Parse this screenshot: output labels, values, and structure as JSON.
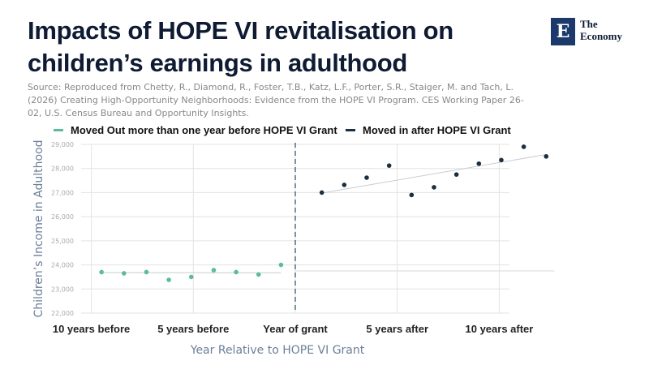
{
  "header": {
    "title_line1": "Impacts of HOPE VI revitalisation on",
    "title_line2": "children’s earnings in adulthood",
    "source": "Source: Reproduced from Chetty, R., Diamond, R., Foster, T.B., Katz, L.F., Porter, S.R., Staiger, M. and Tach, L. (2026) Creating High-Opportunity Neighborhoods: Evidence from the HOPE VI Program. CES Working Paper 26-02, U.S. Census Bureau and Opportunity Insights."
  },
  "logo": {
    "mark": "E",
    "line1": "The",
    "line2": "Economy"
  },
  "colors": {
    "moved_out": "#5dbb9a",
    "moved_in": "#1c2f3e",
    "trend": "#c8cdd2",
    "grid": "#e3e3e3",
    "divider": "#1f4e5e"
  },
  "chart_data": {
    "type": "scatter",
    "xlabel": "Year Relative to HOPE VI Grant",
    "ylabel": "Children’s Income in Adulthood",
    "xlim": [
      -10.5,
      10.5
    ],
    "ylim": [
      22000,
      29000
    ],
    "yticks": [
      22000,
      23000,
      24000,
      25000,
      26000,
      27000,
      28000,
      29000
    ],
    "ytick_labels": [
      "22,000",
      "23,000",
      "24,000",
      "25,000",
      "26,000",
      "27,000",
      "28,000",
      "29,000"
    ],
    "xticks": [
      -10,
      -5,
      0,
      5,
      10
    ],
    "xtick_labels": [
      "10 years before",
      "5 years before",
      "Year of grant",
      "5 years after",
      "10 years after"
    ],
    "grid": true,
    "legend_position": "top",
    "series": [
      {
        "name": "Moved Out more than one year before HOPE VI Grant",
        "points": [
          [
            -9.5,
            23700
          ],
          [
            -8.4,
            23650
          ],
          [
            -7.3,
            23700
          ],
          [
            -6.2,
            23380
          ],
          [
            -5.1,
            23500
          ],
          [
            -4.0,
            23780
          ],
          [
            -2.9,
            23700
          ],
          [
            -1.8,
            23600
          ],
          [
            -0.7,
            24000
          ]
        ],
        "trend": [
          [
            -9.5,
            23680
          ],
          [
            -0.7,
            23670
          ]
        ]
      },
      {
        "name": "Moved in after HOPE VI Grant",
        "points": [
          [
            1.3,
            27000
          ],
          [
            2.4,
            27320
          ],
          [
            3.5,
            27620
          ],
          [
            4.6,
            28120
          ],
          [
            5.7,
            26900
          ],
          [
            6.8,
            27220
          ],
          [
            7.9,
            27750
          ],
          [
            9.0,
            28200
          ],
          [
            10.1,
            28350
          ],
          [
            11.2,
            28900
          ],
          [
            12.3,
            28500
          ]
        ],
        "trend": [
          [
            1.3,
            26980
          ],
          [
            12.3,
            28580
          ]
        ]
      }
    ],
    "reference_lines": [
      {
        "type": "vertical",
        "x": 0
      },
      {
        "type": "horizontal",
        "y": 23750,
        "x_start": 0,
        "x_end": 12.3
      }
    ]
  }
}
